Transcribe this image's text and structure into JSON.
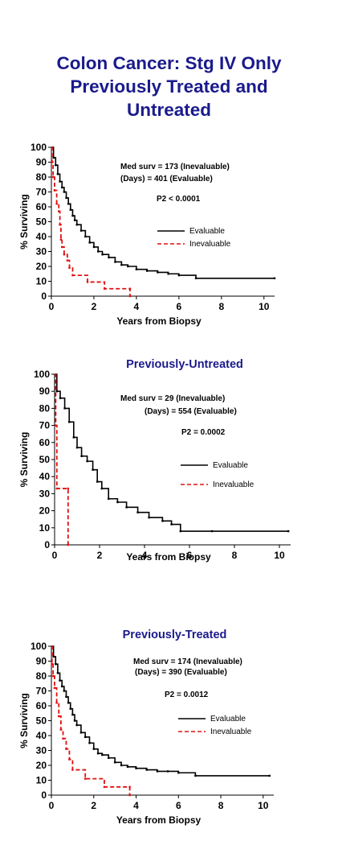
{
  "page": {
    "title_lines": [
      "Colon Cancer: Stg IV Only",
      "Previously Treated and",
      "Untreated"
    ]
  },
  "chart_data": [
    {
      "type": "line",
      "title": "",
      "xlabel": "Years from Biopsy",
      "ylabel": "% Surviving",
      "xlim": [
        0,
        10.5
      ],
      "ylim": [
        0,
        100
      ],
      "xticks": [
        0,
        2,
        4,
        6,
        8,
        10
      ],
      "yticks": [
        0,
        10,
        20,
        30,
        40,
        50,
        60,
        70,
        80,
        90,
        100
      ],
      "grid": false,
      "legend": "right",
      "annotations": [
        "Med surv =    173 (Inevaluable)",
        "(Days)   =    401 (Evaluable)",
        "P2 < 0.0001"
      ],
      "series": [
        {
          "name": "Evaluable",
          "color": "#000000",
          "style": "solid",
          "x": [
            0,
            0.1,
            0.2,
            0.3,
            0.4,
            0.5,
            0.6,
            0.7,
            0.8,
            0.9,
            1.0,
            1.1,
            1.2,
            1.4,
            1.6,
            1.8,
            2.0,
            2.2,
            2.4,
            2.7,
            3.0,
            3.3,
            3.6,
            4.0,
            4.5,
            5.0,
            5.5,
            6.0,
            6.8,
            10.5
          ],
          "y": [
            100,
            93,
            88,
            82,
            77,
            73,
            70,
            66,
            62,
            58,
            54,
            51,
            48,
            44,
            40,
            36,
            33,
            30,
            28,
            26,
            23,
            21,
            20,
            18,
            17,
            16,
            15,
            14,
            12,
            12
          ]
        },
        {
          "name": "Inevaluable",
          "color": "#e01010",
          "style": "dashed",
          "x": [
            0,
            0.03,
            0.08,
            0.15,
            0.25,
            0.35,
            0.4,
            0.45,
            0.5,
            0.6,
            0.75,
            0.85,
            1.0,
            1.7,
            2.5,
            3.7,
            3.7
          ],
          "y": [
            100,
            90,
            80,
            71,
            62,
            57,
            48,
            38,
            33,
            28,
            24,
            19,
            14,
            9.5,
            5,
            5,
            0
          ]
        }
      ]
    },
    {
      "type": "line",
      "title": "Previously-Untreated",
      "xlabel": "Years from Biopsy",
      "ylabel": "% Surviving",
      "xlim": [
        0,
        10.5
      ],
      "ylim": [
        0,
        100
      ],
      "xticks": [
        0,
        2,
        4,
        6,
        8,
        10
      ],
      "yticks": [
        0,
        10,
        20,
        30,
        40,
        50,
        60,
        70,
        80,
        90,
        100
      ],
      "grid": false,
      "legend": "right",
      "annotations": [
        "Med surv =     29 (Inevaluable)",
        "(Days)    =    554 (Evaluable)",
        "P2 = 0.0002"
      ],
      "series": [
        {
          "name": "Evaluable",
          "color": "#000000",
          "style": "solid",
          "x": [
            0,
            0.1,
            0.25,
            0.45,
            0.65,
            0.85,
            1.0,
            1.2,
            1.45,
            1.7,
            1.9,
            2.1,
            2.4,
            2.8,
            3.2,
            3.7,
            4.2,
            4.8,
            5.2,
            5.6,
            7.0,
            10.4
          ],
          "y": [
            100,
            90,
            86,
            80,
            72,
            63,
            57,
            52,
            49,
            44,
            37,
            33,
            27,
            25,
            22,
            19,
            16,
            14,
            12,
            8,
            8,
            8
          ]
        },
        {
          "name": "Inevaluable",
          "color": "#e01010",
          "style": "dashed",
          "x": [
            0,
            0.05,
            0.1,
            0.6,
            0.6
          ],
          "y": [
            100,
            70,
            33,
            33,
            0
          ]
        }
      ]
    },
    {
      "type": "line",
      "title": "Previously-Treated",
      "xlabel": "Years from Biopsy",
      "ylabel": "% Surviving",
      "xlim": [
        0,
        10.5
      ],
      "ylim": [
        0,
        100
      ],
      "xticks": [
        0,
        2,
        4,
        6,
        8,
        10
      ],
      "yticks": [
        0,
        10,
        20,
        30,
        40,
        50,
        60,
        70,
        80,
        90,
        100
      ],
      "grid": false,
      "legend": "right",
      "annotations": [
        "Med surv =   174 (Inevaluable)",
        "(Days)   =   390 (Evaluable)",
        "P2 = 0.0012"
      ],
      "series": [
        {
          "name": "Evaluable",
          "color": "#000000",
          "style": "solid",
          "x": [
            0,
            0.1,
            0.2,
            0.3,
            0.4,
            0.5,
            0.6,
            0.7,
            0.8,
            0.9,
            1.0,
            1.1,
            1.2,
            1.4,
            1.6,
            1.8,
            2.0,
            2.2,
            2.4,
            2.7,
            3.0,
            3.3,
            3.6,
            4.0,
            4.5,
            5.0,
            5.5,
            6.0,
            6.8,
            10.3
          ],
          "y": [
            100,
            93,
            88,
            82,
            77,
            73,
            70,
            66,
            62,
            58,
            54,
            50,
            47,
            42,
            39,
            35,
            31,
            28,
            27,
            25,
            22,
            20,
            19,
            18,
            17,
            16,
            16,
            15,
            13,
            13
          ]
        },
        {
          "name": "Inevaluable",
          "color": "#e01010",
          "style": "dashed",
          "x": [
            0,
            0.03,
            0.08,
            0.15,
            0.25,
            0.35,
            0.45,
            0.55,
            0.7,
            0.85,
            1.0,
            1.6,
            2.5,
            3.7,
            3.7
          ],
          "y": [
            100,
            88,
            80,
            72,
            62,
            53,
            44,
            38,
            31,
            24,
            17,
            11,
            5.5,
            5.5,
            0
          ]
        }
      ]
    }
  ]
}
